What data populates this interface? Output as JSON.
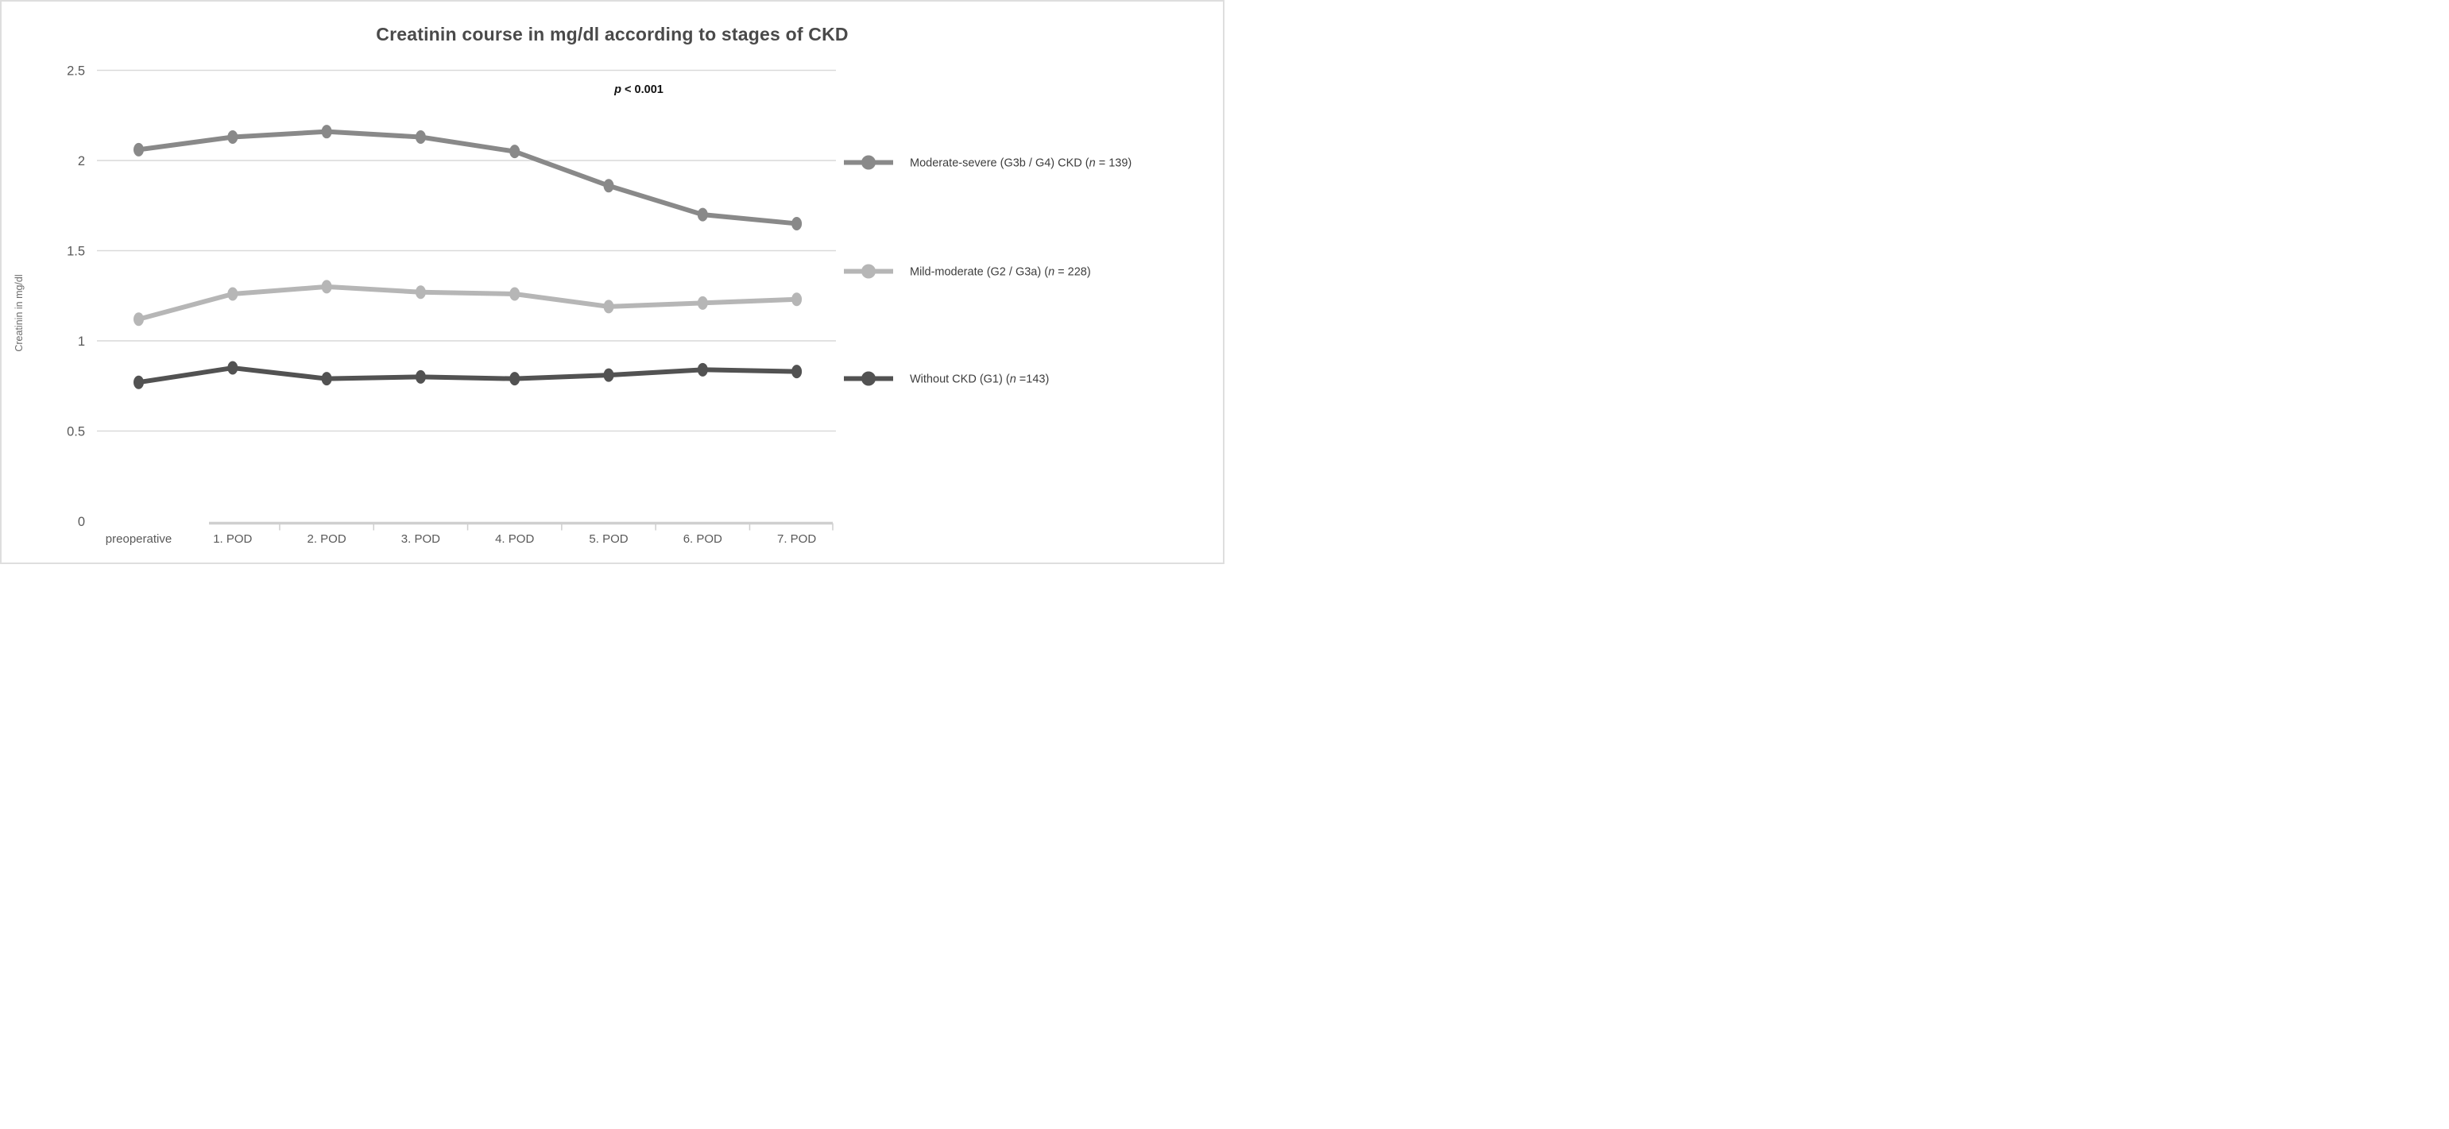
{
  "title": "Creatinin course in mg/dl according to stages of CKD",
  "annotation": {
    "p_italic": "p",
    "p_rest": " < 0.001"
  },
  "y_axis_title": "Creatinin in mg/dl",
  "colors": {
    "gridline": "#d9d9d9",
    "axis_line": "#cfcfcf",
    "tick_label": "#595959",
    "title": "#4a4a4a",
    "legend_text": "#3d3d3d",
    "annotation_text": "#111111",
    "series_moderate_severe": "#898989",
    "series_mild_moderate": "#b6b6b6",
    "series_without_ckd": "#525252"
  },
  "chart_data": {
    "type": "line",
    "title": "Creatinin course in mg/dl according to stages of CKD",
    "xlabel": "",
    "ylabel": "Creatinin in mg/dl",
    "ylim": [
      0,
      2.5
    ],
    "y_ticks": [
      "2.5",
      "2",
      "1.5",
      "1",
      "0.5",
      "0"
    ],
    "grid": true,
    "legend_position": "right",
    "annotation": "p < 0.001",
    "categories": [
      "preoperative",
      "1. POD",
      "2. POD",
      "3. POD",
      "4. POD",
      "5. POD",
      "6. POD",
      "7. POD"
    ],
    "series": [
      {
        "name": "Moderate-severe (G3b / G4) CKD (n = 139)",
        "color": "#898989",
        "values": [
          2.06,
          2.13,
          2.16,
          2.13,
          2.05,
          1.86,
          1.7,
          1.65
        ],
        "legend": {
          "prefix": "Moderate-severe (G3b / G4) CKD (",
          "italic": "n",
          "suffix": " = 139)"
        }
      },
      {
        "name": "Mild-moderate (G2 / G3a) (n = 228)",
        "color": "#b6b6b6",
        "values": [
          1.12,
          1.26,
          1.3,
          1.27,
          1.26,
          1.19,
          1.21,
          1.23
        ],
        "legend": {
          "prefix": "Mild-moderate (G2 / G3a)  (",
          "italic": "n",
          "suffix": " = 228)"
        }
      },
      {
        "name": "Without CKD (G1) (n =143)",
        "color": "#525252",
        "values": [
          0.77,
          0.85,
          0.79,
          0.8,
          0.79,
          0.81,
          0.84,
          0.83
        ],
        "legend": {
          "prefix": "Without CKD (G1) (",
          "italic": "n",
          "suffix": " =143)"
        }
      }
    ]
  }
}
